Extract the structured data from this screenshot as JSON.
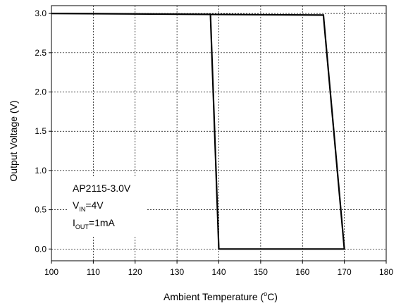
{
  "chart_data": {
    "type": "line",
    "xlabel_parts": {
      "main": "Ambient Temperature (",
      "sup": "o",
      "tail": "C)"
    },
    "ylabel": "Output Voltage (V)",
    "xlim": [
      100,
      180
    ],
    "ylim": [
      -0.15,
      3.1
    ],
    "x_ticks": [
      100,
      110,
      120,
      130,
      140,
      150,
      160,
      170,
      180
    ],
    "x_tick_labels": [
      "100",
      "110",
      "120",
      "130",
      "140",
      "150",
      "160",
      "170",
      "180"
    ],
    "y_ticks": [
      0.0,
      0.5,
      1.0,
      1.5,
      2.0,
      2.5,
      3.0
    ],
    "y_tick_labels": [
      "0.0",
      "0.5",
      "1.0",
      "1.5",
      "2.0",
      "2.5",
      "3.0"
    ],
    "grid": true,
    "series": [
      {
        "x": [
          100,
          138,
          140,
          170,
          165,
          100
        ],
        "y": [
          3.0,
          2.99,
          0.0,
          0.0,
          2.98,
          3.0
        ]
      }
    ],
    "annotation": {
      "line1": "AP2115-3.0V",
      "line2": {
        "main": "V",
        "sub": "IN",
        "tail": "=4V"
      },
      "line3": {
        "main": "I",
        "sub": "OUT",
        "tail": "=1mA"
      }
    }
  }
}
